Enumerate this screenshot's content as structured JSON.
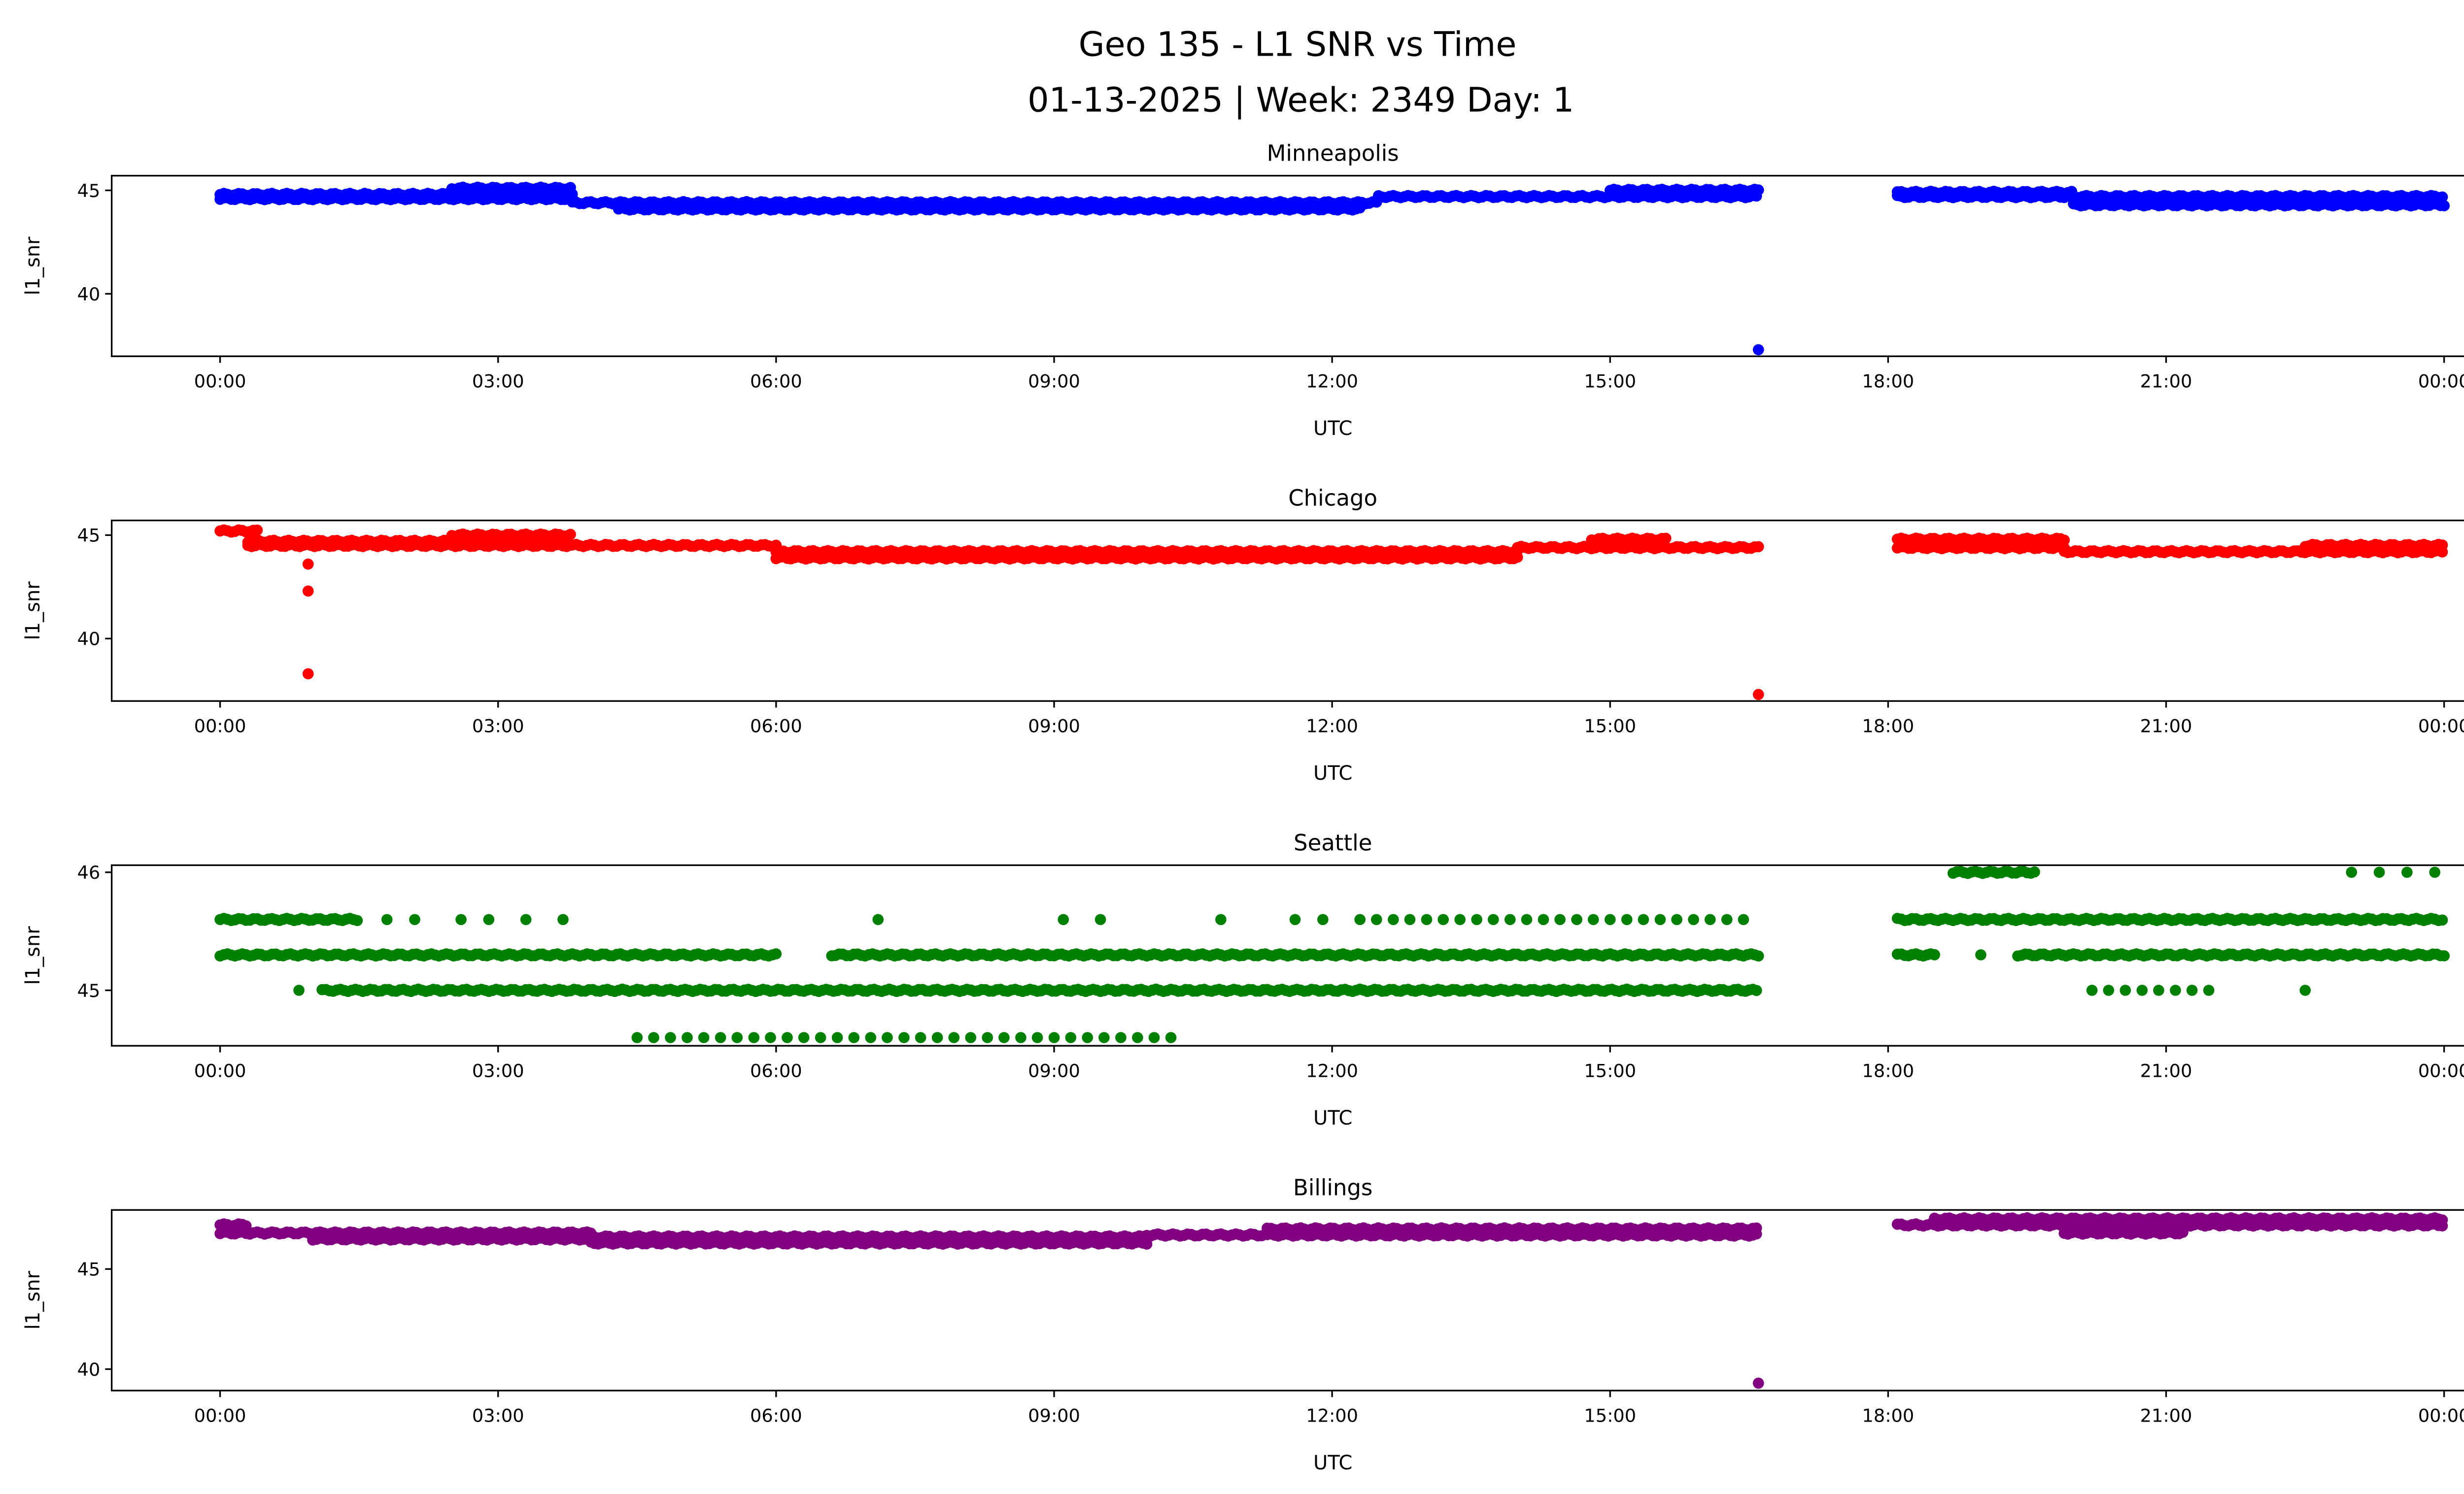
{
  "title_line1": "Geo 135 - L1 SNR vs Time",
  "title_line2": "01-13-2025 | Week: 2349 Day: 1",
  "chart_data": [
    {
      "type": "scatter",
      "title": "Minneapolis",
      "xlabel": "UTC",
      "ylabel": "l1_snr",
      "color": "#0000ff",
      "xlim_hours": [
        -0.4,
        25
      ],
      "ylim": [
        36.98,
        45.71
      ],
      "xticks": [
        "00:00",
        "03:00",
        "06:00",
        "09:00",
        "12:00",
        "15:00",
        "18:00",
        "21:00",
        "00:00"
      ],
      "yticks": [
        {
          "value": 40,
          "label": "40"
        },
        {
          "value": 45,
          "label": "45"
        }
      ],
      "bands": [
        {
          "from": 0.0,
          "to": 3.8,
          "snr": 44.8
        },
        {
          "from": 0.0,
          "to": 3.8,
          "snr": 44.6
        },
        {
          "from": 2.5,
          "to": 3.8,
          "snr": 45.1
        },
        {
          "from": 3.8,
          "to": 12.5,
          "snr": 44.4
        },
        {
          "from": 4.3,
          "to": 12.3,
          "snr": 44.1
        },
        {
          "from": 12.5,
          "to": 16.6,
          "snr": 44.7
        },
        {
          "from": 15.0,
          "to": 16.6,
          "snr": 45.0
        },
        {
          "from": 18.1,
          "to": 24.0,
          "snr": 44.7
        },
        {
          "from": 18.1,
          "to": 20.0,
          "snr": 44.9
        },
        {
          "from": 20.0,
          "to": 24.0,
          "snr": 44.3
        }
      ],
      "outliers": [
        [
          16.6,
          37.3
        ]
      ]
    },
    {
      "type": "scatter",
      "title": "Chicago",
      "xlabel": "UTC",
      "ylabel": "l1_snr",
      "color": "#ff0000",
      "xlim_hours": [
        -0.4,
        25
      ],
      "ylim": [
        36.98,
        45.71
      ],
      "xticks": [
        "00:00",
        "03:00",
        "06:00",
        "09:00",
        "12:00",
        "15:00",
        "18:00",
        "21:00",
        "00:00"
      ],
      "yticks": [
        {
          "value": 40,
          "label": "40"
        },
        {
          "value": 45,
          "label": "45"
        }
      ],
      "bands": [
        {
          "from": 0.0,
          "to": 0.4,
          "snr": 45.2
        },
        {
          "from": 0.3,
          "to": 2.5,
          "snr": 44.7
        },
        {
          "from": 2.5,
          "to": 3.8,
          "snr": 45.0
        },
        {
          "from": 0.3,
          "to": 3.8,
          "snr": 44.5
        },
        {
          "from": 3.8,
          "to": 6.0,
          "snr": 44.5
        },
        {
          "from": 6.0,
          "to": 14.0,
          "snr": 44.2
        },
        {
          "from": 6.0,
          "to": 14.0,
          "snr": 43.9
        },
        {
          "from": 14.0,
          "to": 16.6,
          "snr": 44.4
        },
        {
          "from": 14.8,
          "to": 15.6,
          "snr": 44.8
        },
        {
          "from": 18.1,
          "to": 19.9,
          "snr": 44.8
        },
        {
          "from": 18.1,
          "to": 19.9,
          "snr": 44.4
        },
        {
          "from": 19.9,
          "to": 24.0,
          "snr": 44.2
        },
        {
          "from": 22.5,
          "to": 24.0,
          "snr": 44.5
        }
      ],
      "outliers": [
        [
          0.95,
          43.6
        ],
        [
          0.95,
          42.3
        ],
        [
          0.95,
          38.3
        ],
        [
          16.6,
          37.3
        ]
      ]
    },
    {
      "type": "scatter",
      "title": "Seattle",
      "xlabel": "UTC",
      "ylabel": "l1_snr",
      "color": "#008000",
      "xlim_hours": [
        -0.4,
        25
      ],
      "ylim": [
        44.53,
        46.06
      ],
      "xticks": [
        "00:00",
        "03:00",
        "06:00",
        "09:00",
        "12:00",
        "15:00",
        "18:00",
        "21:00",
        "00:00"
      ],
      "yticks": [
        {
          "value": 45,
          "label": "45"
        },
        {
          "value": 46,
          "label": "46"
        }
      ],
      "bands": [
        {
          "from": 0.0,
          "to": 1.5,
          "snr": 45.6
        },
        {
          "from": 12.3,
          "to": 16.6,
          "snr": 45.6,
          "sparse": true
        },
        {
          "from": 0.0,
          "to": 6.0,
          "snr": 45.3
        },
        {
          "from": 6.6,
          "to": 16.6,
          "snr": 45.3
        },
        {
          "from": 1.1,
          "to": 16.6,
          "snr": 45.0
        },
        {
          "from": 4.5,
          "to": 10.4,
          "snr": 44.6,
          "sparse": true
        },
        {
          "from": 18.7,
          "to": 19.6,
          "snr": 46.0
        },
        {
          "from": 18.1,
          "to": 24.0,
          "snr": 45.6
        },
        {
          "from": 18.1,
          "to": 18.5,
          "snr": 45.3
        },
        {
          "from": 19.4,
          "to": 24.0,
          "snr": 45.3
        },
        {
          "from": 20.2,
          "to": 21.5,
          "snr": 45.0,
          "sparse": true
        }
      ],
      "outliers": [
        [
          0.85,
          45.0
        ],
        [
          1.8,
          45.6
        ],
        [
          2.1,
          45.6
        ],
        [
          2.6,
          45.6
        ],
        [
          2.9,
          45.6
        ],
        [
          3.3,
          45.6
        ],
        [
          3.7,
          45.6
        ],
        [
          7.1,
          45.6
        ],
        [
          9.1,
          45.6
        ],
        [
          9.5,
          45.6
        ],
        [
          10.8,
          45.6
        ],
        [
          11.6,
          45.6
        ],
        [
          11.9,
          45.6
        ],
        [
          18.5,
          45.3
        ],
        [
          19.0,
          45.3
        ],
        [
          22.5,
          45.0
        ],
        [
          23.0,
          46.0
        ],
        [
          23.3,
          46.0
        ],
        [
          23.6,
          46.0
        ],
        [
          23.9,
          46.0
        ]
      ]
    },
    {
      "type": "scatter",
      "title": "Billings",
      "xlabel": "UTC",
      "ylabel": "l1_snr",
      "color": "#800080",
      "xlim_hours": [
        -0.4,
        25
      ],
      "ylim": [
        38.93,
        47.95
      ],
      "xticks": [
        "00:00",
        "03:00",
        "06:00",
        "09:00",
        "12:00",
        "15:00",
        "18:00",
        "21:00",
        "00:00"
      ],
      "yticks": [
        {
          "value": 40,
          "label": "40"
        },
        {
          "value": 45,
          "label": "45"
        }
      ],
      "bands": [
        {
          "from": 0.0,
          "to": 0.3,
          "snr": 47.2
        },
        {
          "from": 0.0,
          "to": 4.0,
          "snr": 46.8
        },
        {
          "from": 1.0,
          "to": 4.0,
          "snr": 46.5
        },
        {
          "from": 4.0,
          "to": 10.0,
          "snr": 46.3
        },
        {
          "from": 4.0,
          "to": 10.0,
          "snr": 46.6
        },
        {
          "from": 10.0,
          "to": 11.3,
          "snr": 46.7
        },
        {
          "from": 11.3,
          "to": 16.6,
          "snr": 47.0
        },
        {
          "from": 11.3,
          "to": 16.6,
          "snr": 46.7
        },
        {
          "from": 18.1,
          "to": 24.0,
          "snr": 47.2
        },
        {
          "from": 18.5,
          "to": 24.0,
          "snr": 47.5
        },
        {
          "from": 19.9,
          "to": 21.2,
          "snr": 46.8
        }
      ],
      "outliers": [
        [
          16.6,
          39.3
        ]
      ]
    }
  ]
}
